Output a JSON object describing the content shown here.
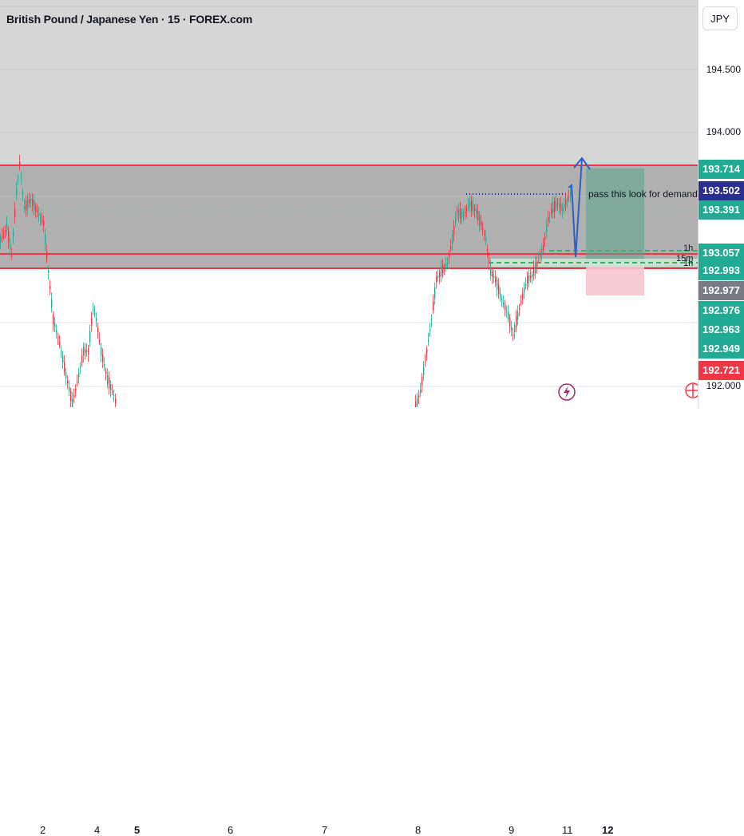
{
  "header": {
    "title": "British Pound / Japanese Yen · 15 · FOREX.com"
  },
  "price_scale": {
    "currency": "JPY",
    "labels": [
      "194.500",
      "194.000",
      "192.000"
    ]
  },
  "badges": [
    {
      "text": "193.714",
      "color": "#22ab94"
    },
    {
      "text": "193.502",
      "color": "#2a2e8c"
    },
    {
      "text": "193.391",
      "color": "#22ab94"
    },
    {
      "text": "193.057",
      "color": "#22ab94"
    },
    {
      "text": "192.993",
      "color": "#22ab94"
    },
    {
      "text": "192.977",
      "color": "#787b86"
    },
    {
      "text": "192.976",
      "color": "#22ab94"
    },
    {
      "text": "192.963",
      "color": "#22ab94"
    },
    {
      "text": "192.949",
      "color": "#22ab94"
    },
    {
      "text": "192.721",
      "color": "#f23645"
    }
  ],
  "time_axis": [
    "2",
    "4",
    "5",
    "6",
    "7",
    "8",
    "9",
    "11",
    "12"
  ],
  "annotations": {
    "note": "pass this look for demand",
    "tf_1h": "1h",
    "tf_15m": "15m",
    "tf_1h_b": "1h"
  },
  "colors": {
    "supply_zone": "#c8c8c8",
    "zone_line": "#f23645",
    "up": "#22ab94",
    "down": "#f23645",
    "arrow": "#2f5fc4",
    "target": "#5aa58a",
    "stop": "#f7c5cb"
  }
}
